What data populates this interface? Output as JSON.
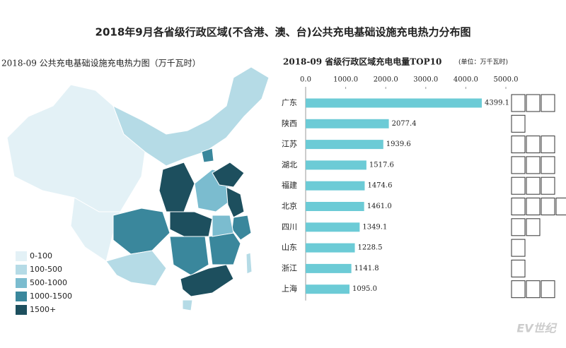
{
  "title": "2018年9月各省级行政区域(不含港、澳、台)公共充电基础设施充电热力分布图",
  "watermark": "EV世纪",
  "chart_data": [
    {
      "type": "map",
      "title": "2018-09 公共充电基础设施充电热力图（万千瓦时）",
      "legend": [
        {
          "label": "0-100",
          "color": "#e3f1f6"
        },
        {
          "label": "100-500",
          "color": "#b5dbe6"
        },
        {
          "label": "500-1000",
          "color": "#7bbccf"
        },
        {
          "label": "1000-1500",
          "color": "#3a879c"
        },
        {
          "label": "1500+",
          "color": "#1d4f5e"
        }
      ]
    },
    {
      "type": "bar",
      "orientation": "horizontal",
      "title": "2018-09 省级行政区域充电电量TOP10",
      "subtitle": "(单位：万千瓦时)",
      "categories": [
        "广东",
        "陕西",
        "江苏",
        "湖北",
        "福建",
        "北京",
        "四川",
        "山东",
        "浙江",
        "上海"
      ],
      "values": [
        4399.1,
        2077.4,
        1939.6,
        1517.6,
        1474.6,
        1461.0,
        1349.1,
        1228.5,
        1141.8,
        1095.0
      ],
      "value_labels": [
        "4399.1",
        "2077.4",
        "1939.6",
        "1517.6",
        "1474.6",
        "1461.0",
        "1349.1",
        "1228.5",
        "1141.8",
        "1095.0"
      ],
      "color": "#6ccbd6",
      "xlim": [
        0,
        5000
      ],
      "xticks": [
        {
          "value": 0,
          "label": "0.0"
        },
        {
          "value": 1000,
          "label": "1000.0"
        },
        {
          "value": 2000,
          "label": "2000.0"
        },
        {
          "value": 3000,
          "label": "3000.0"
        },
        {
          "value": 4000,
          "label": "4000.0"
        },
        {
          "value": 5000,
          "label": "5000.0"
        }
      ]
    }
  ]
}
